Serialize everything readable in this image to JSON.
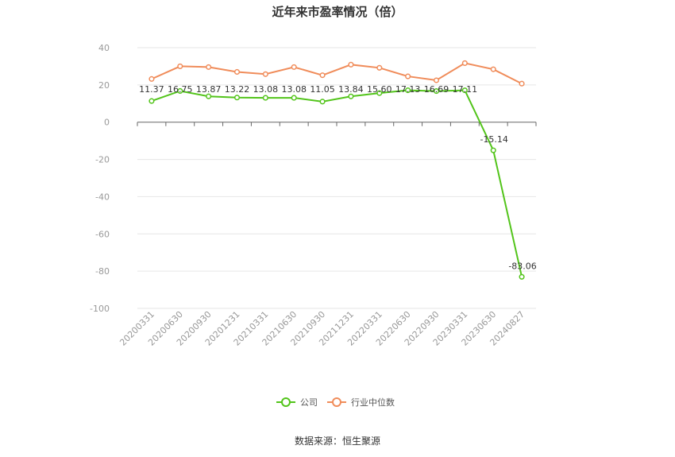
{
  "chart_data": {
    "type": "line",
    "title": "近年来市盈率情况（倍）",
    "x": [
      "20200331",
      "20200630",
      "20200930",
      "20201231",
      "20210331",
      "20210630",
      "20210930",
      "20211231",
      "20220331",
      "20220630",
      "20220930",
      "20230331",
      "20230630",
      "20240827"
    ],
    "ylim": [
      -100,
      40
    ],
    "yticks": [
      40,
      20,
      0,
      -20,
      -40,
      -60,
      -80,
      -100
    ],
    "grid": true,
    "legend_position": "bottom",
    "series": [
      {
        "name": "公司",
        "color": "#52c41a",
        "values": [
          11.37,
          16.75,
          13.87,
          13.22,
          13.08,
          13.08,
          11.05,
          13.84,
          15.6,
          17.13,
          16.69,
          17.11,
          -15.14,
          -83.06
        ],
        "labels": [
          "11.37",
          "16.75",
          "13.87",
          "13.22",
          "13.08",
          "13.08",
          "11.05",
          "13.84",
          "15.60",
          "17.13",
          "16.69",
          "17.11",
          "-15.14",
          "-83.06"
        ]
      },
      {
        "name": "行业中位数",
        "color": "#f08c5a",
        "values": [
          23.2,
          30.0,
          29.6,
          27.0,
          25.8,
          29.6,
          25.2,
          30.9,
          29.2,
          24.6,
          22.5,
          31.7,
          28.4,
          20.7
        ]
      }
    ],
    "source": "数据来源：恒生聚源"
  }
}
